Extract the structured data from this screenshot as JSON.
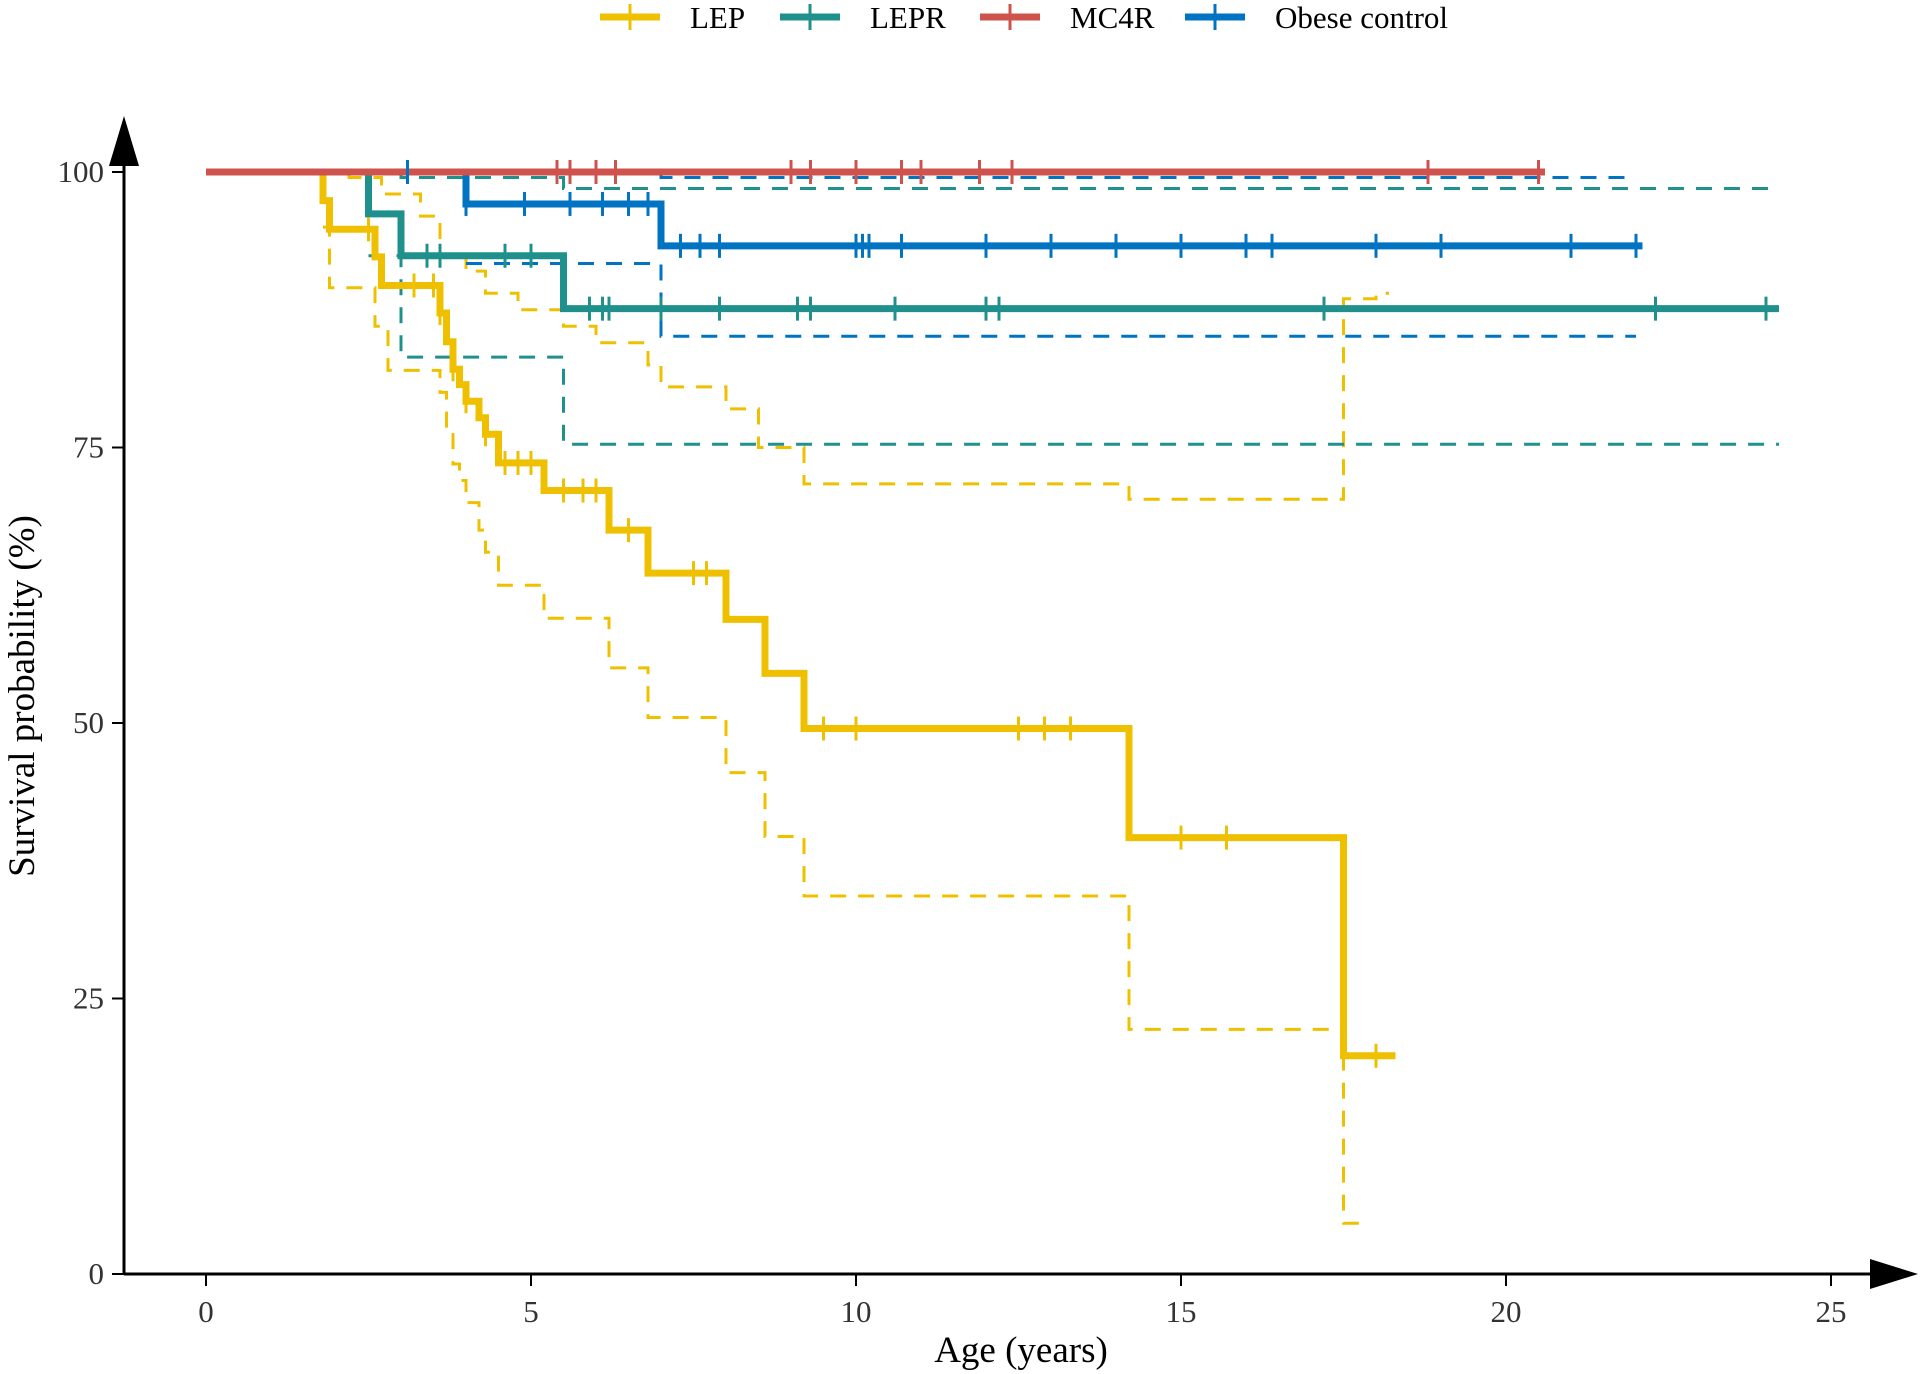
{
  "chart_data": {
    "type": "line",
    "subtype": "kaplan-meier",
    "title": "",
    "xlabel": "Age (years)",
    "ylabel": "Survival probability (%)",
    "xlim": [
      0,
      25
    ],
    "ylim": [
      0,
      100
    ],
    "xticks": [
      0,
      5,
      10,
      15,
      20,
      25
    ],
    "yticks": [
      0,
      25,
      50,
      75,
      100
    ],
    "legend_position": "top",
    "colors": {
      "LEP": "#EFC000",
      "LEPR": "#20908D",
      "MC4R": "#CD534C",
      "Obese control": "#0073C2"
    },
    "series": [
      {
        "name": "LEP",
        "steps": [
          [
            0,
            100
          ],
          [
            1.8,
            97.4
          ],
          [
            1.9,
            94.8
          ],
          [
            2.6,
            92.3
          ],
          [
            2.7,
            89.7
          ],
          [
            3.6,
            87.2
          ],
          [
            3.7,
            84.6
          ],
          [
            3.8,
            82.1
          ],
          [
            3.9,
            80.7
          ],
          [
            4.0,
            79.2
          ],
          [
            4.2,
            77.7
          ],
          [
            4.3,
            76.2
          ],
          [
            4.5,
            73.6
          ],
          [
            5.2,
            71.1
          ],
          [
            6.2,
            67.5
          ],
          [
            6.8,
            63.6
          ],
          [
            8.0,
            59.4
          ],
          [
            8.6,
            54.5
          ],
          [
            9.2,
            49.5
          ],
          [
            14.2,
            39.6
          ],
          [
            17.5,
            19.8
          ]
        ],
        "end": 18.3,
        "censor": [
          2.5,
          3.2,
          3.5,
          3.6,
          3.8,
          4.0,
          4.3,
          4.6,
          4.8,
          5.0,
          5.5,
          5.8,
          6.0,
          6.5,
          7.5,
          7.7,
          9.5,
          10.0,
          12.5,
          12.9,
          13.3,
          15.0,
          15.7,
          18.0
        ],
        "ci_upper": [
          [
            1.8,
            100
          ],
          [
            2.2,
            99.5
          ],
          [
            2.7,
            98
          ],
          [
            3.3,
            96
          ],
          [
            3.6,
            92.5
          ],
          [
            4.0,
            91
          ],
          [
            4.3,
            89
          ],
          [
            4.8,
            87.5
          ],
          [
            5.5,
            86
          ],
          [
            6.0,
            84.5
          ],
          [
            6.8,
            82.5
          ],
          [
            7.0,
            80.5
          ],
          [
            8.0,
            78.5
          ],
          [
            8.5,
            75
          ],
          [
            9.2,
            71.7
          ],
          [
            14.2,
            70.3
          ],
          [
            17.5,
            88.5
          ],
          [
            18.0,
            89
          ]
        ],
        "ci_upper_end": 18.2,
        "ci_lower": [
          [
            1.8,
            95
          ],
          [
            1.9,
            89.5
          ],
          [
            2.6,
            86
          ],
          [
            2.8,
            82
          ],
          [
            3.2,
            82
          ],
          [
            3.6,
            80
          ],
          [
            3.7,
            76.5
          ],
          [
            3.8,
            73.5
          ],
          [
            3.9,
            72
          ],
          [
            4.0,
            70
          ],
          [
            4.2,
            67.5
          ],
          [
            4.3,
            65.5
          ],
          [
            4.5,
            62.5
          ],
          [
            5.2,
            59.5
          ],
          [
            6.2,
            55
          ],
          [
            6.8,
            50.5
          ],
          [
            8.0,
            45.5
          ],
          [
            8.6,
            39.7
          ],
          [
            9.2,
            34.3
          ],
          [
            14.2,
            22.2
          ],
          [
            17.5,
            4.6
          ]
        ],
        "ci_lower_end": 17.9
      },
      {
        "name": "LEPR",
        "steps": [
          [
            0,
            100
          ],
          [
            2.5,
            96.2
          ],
          [
            3.0,
            92.4
          ],
          [
            5.5,
            87.6
          ]
        ],
        "end": 24.2,
        "censor": [
          3.4,
          3.6,
          4.6,
          5.0,
          5.9,
          6.1,
          6.2,
          7.0,
          7.9,
          9.1,
          9.3,
          10.6,
          12.0,
          12.2,
          17.2,
          22.3,
          24.0
        ],
        "ci_upper": [
          [
            2.5,
            100
          ],
          [
            3.0,
            99.5
          ],
          [
            5.5,
            98.5
          ]
        ],
        "ci_upper_end": 24.2,
        "ci_lower": [
          [
            2.5,
            92.4
          ],
          [
            3.0,
            83.2
          ],
          [
            5.5,
            75.3
          ]
        ],
        "ci_lower_end": 24.2
      },
      {
        "name": "MC4R",
        "steps": [
          [
            0,
            100
          ]
        ],
        "end": 20.6,
        "censor": [
          5.4,
          5.6,
          6.0,
          6.3,
          9.0,
          9.3,
          10.0,
          10.7,
          11.0,
          11.9,
          12.4,
          18.8,
          20.5
        ],
        "ci_upper": [],
        "ci_lower": []
      },
      {
        "name": "Obese control",
        "steps": [
          [
            0,
            100
          ],
          [
            4.0,
            97.1
          ],
          [
            7.0,
            93.3
          ]
        ],
        "end": 22.1,
        "censor": [
          3.1,
          4.0,
          4.9,
          5.6,
          6.1,
          6.5,
          6.8,
          7.3,
          7.6,
          7.9,
          10.0,
          10.1,
          10.2,
          10.7,
          12.0,
          13.0,
          14.0,
          15.0,
          16.0,
          16.4,
          18.0,
          19.0,
          21.0,
          22.0
        ],
        "ci_upper": [
          [
            4.0,
            100
          ],
          [
            7.0,
            99.5
          ]
        ],
        "ci_upper_end": 22.0,
        "ci_lower": [
          [
            4.0,
            91.7
          ],
          [
            7.0,
            85.1
          ]
        ],
        "ci_lower_end": 22.0
      }
    ]
  }
}
